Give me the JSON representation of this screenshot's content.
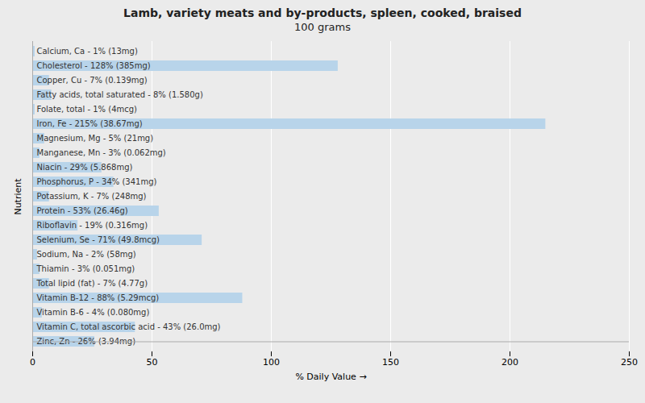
{
  "chart_data": {
    "type": "bar",
    "title": "Lamb, variety meats and by-products, spleen, cooked, braised",
    "subtitle": "100 grams",
    "x_label": "% Daily Value",
    "y_label": "Nutrient",
    "orientation": "horizontal",
    "categories": [
      "Calcium, Ca - 1% (13mg)",
      "Cholesterol - 128% (385mg)",
      "Copper, Cu - 7% (0.139mg)",
      "Fatty acids, total saturated - 8% (1.580g)",
      "Folate, total - 1% (4mcg)",
      "Iron, Fe - 215% (38.67mg)",
      "Magnesium, Mg - 5% (21mg)",
      "Manganese, Mn - 3% (0.062mg)",
      "Niacin - 29% (5.868mg)",
      "Phosphorus, P - 34% (341mg)",
      "Potassium, K - 7% (248mg)",
      "Protein - 53% (26.46g)",
      "Riboflavin - 19% (0.316mg)",
      "Selenium, Se - 71% (49.8mcg)",
      "Sodium, Na - 2% (58mg)",
      "Thiamin - 3% (0.051mg)",
      "Total lipid (fat) - 7% (4.77g)",
      "Vitamin B-12 - 88% (5.29mcg)",
      "Vitamin B-6 - 4% (0.080mg)",
      "Vitamin C, total ascorbic acid - 43% (26.0mg)",
      "Zinc, Zn - 26% (3.94mg)"
    ],
    "values": [
      1,
      128,
      7,
      8,
      1,
      215,
      5,
      3,
      29,
      34,
      7,
      53,
      19,
      71,
      2,
      3,
      7,
      88,
      4,
      43,
      26
    ],
    "color": "#b8d4ea",
    "xlim": [
      0,
      250
    ],
    "xticks": [
      0,
      50,
      100,
      150,
      200,
      250
    ],
    "grid": true,
    "tick_labels": "x"
  }
}
